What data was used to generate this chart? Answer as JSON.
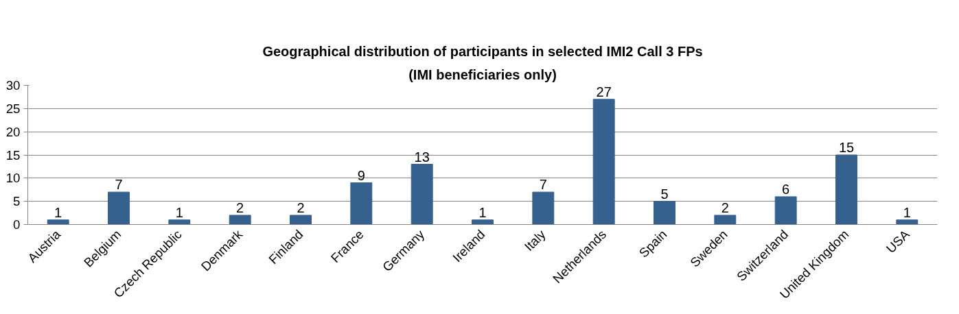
{
  "chart_data": {
    "type": "bar",
    "title": "Geographical distribution of participants in selected IMI2 Call 3 FPs",
    "subtitle": "(IMI beneficiaries only)",
    "categories": [
      "Austria",
      "Belgium",
      "Czech Republic",
      "Denmark",
      "Finland",
      "France",
      "Germany",
      "Ireland",
      "Italy",
      "Netherlands",
      "Spain",
      "Sweden",
      "Switzerland",
      "United Kingdom",
      "USA"
    ],
    "values": [
      1,
      7,
      1,
      2,
      2,
      9,
      13,
      1,
      7,
      27,
      5,
      2,
      6,
      15,
      1
    ],
    "color": "#35618f",
    "ylim": [
      0,
      30
    ],
    "yticks": [
      0,
      5,
      10,
      15,
      20,
      25,
      30
    ],
    "grid": "y",
    "data_labels": true
  }
}
